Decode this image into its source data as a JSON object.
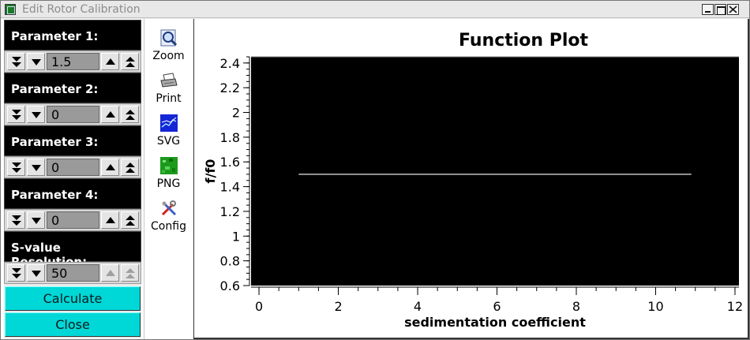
{
  "window": {
    "title": "Edit Rotor Calibration"
  },
  "parameters": [
    {
      "label": "Parameter 1:",
      "value": "1.5",
      "up_enabled": true
    },
    {
      "label": "Parameter 2:",
      "value": "0",
      "up_enabled": true
    },
    {
      "label": "Parameter 3:",
      "value": "0",
      "up_enabled": true
    },
    {
      "label": "Parameter 4:",
      "value": "0",
      "up_enabled": true
    },
    {
      "label": "S-value Resolution:",
      "value": "50",
      "up_enabled": false
    }
  ],
  "actions": {
    "calculate": "Calculate",
    "close": "Close"
  },
  "toolbar": {
    "zoom": "Zoom",
    "print": "Print",
    "svg": "SVG",
    "png": "PNG",
    "config": "Config"
  },
  "chart_data": {
    "type": "line",
    "title": "Function Plot",
    "xlabel": "sedimentation coefficient",
    "ylabel": "f/f0",
    "xlim": [
      -0.2,
      12.1
    ],
    "ylim": [
      0.6,
      2.45
    ],
    "x_ticks": [
      0,
      2,
      4,
      6,
      8,
      10,
      12
    ],
    "y_ticks": [
      0.6,
      0.8,
      1,
      1.2,
      1.4,
      1.6,
      1.8,
      2,
      2.2,
      2.4
    ],
    "x_tick_labels": [
      "0",
      "2",
      "4",
      "6",
      "8",
      "10",
      "12"
    ],
    "y_tick_labels": [
      "0.6",
      "0.8",
      "1",
      "1.2",
      "1.4",
      "1.6",
      "1.8",
      "2",
      "2.2",
      "2.4"
    ],
    "grid": false,
    "background": "#000000",
    "series": [
      {
        "x": [
          1,
          10.9
        ],
        "y": [
          1.5,
          1.5
        ],
        "color": "#ffffff"
      }
    ]
  }
}
